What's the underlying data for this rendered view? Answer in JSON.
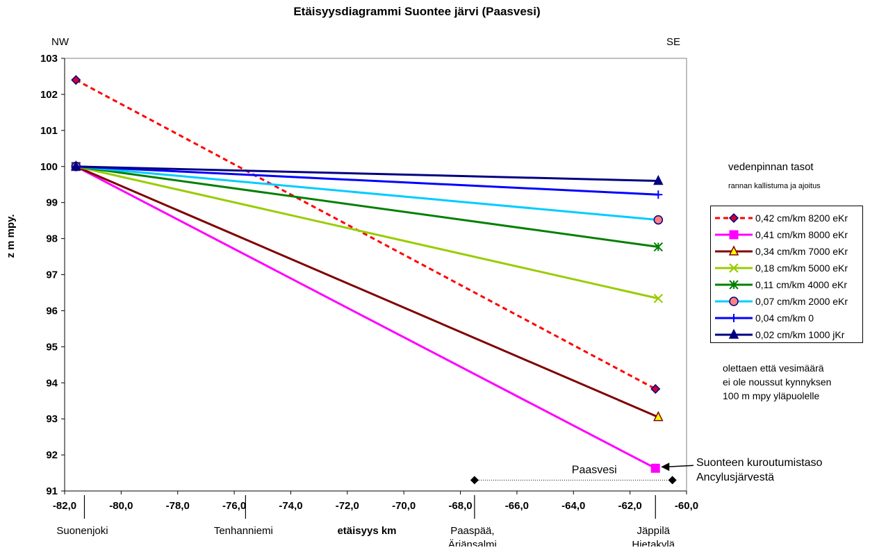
{
  "chart_data": {
    "type": "line",
    "title": "Etäisyysdiagrammi Suontee järvi (Paasvesi)",
    "xlabel": "etäisyys km",
    "ylabel": "z m mpy.",
    "xlim": [
      -82,
      -60
    ],
    "ylim": [
      91,
      103
    ],
    "x_ticks": [
      "-82,0",
      "-80,0",
      "-78,0",
      "-76,0",
      "-74,0",
      "-72,0",
      "-70,0",
      "-68,0",
      "-66,0",
      "-64,0",
      "-62,0",
      "-60,0"
    ],
    "y_ticks": [
      "91",
      "92",
      "93",
      "94",
      "95",
      "96",
      "97",
      "98",
      "99",
      "100",
      "101",
      "102",
      "103"
    ],
    "direction_left": "NW",
    "direction_right": "SE",
    "legend_title": "vedenpinnan tasot",
    "legend_subtitle": "rannan kallistuma ja ajoitus",
    "legend_position": "right",
    "series": [
      {
        "name": "0,42 cm/km 8200 eKr",
        "color": "#ff0000",
        "dash": true,
        "marker": "diamond",
        "marker_fill": "#cc0033",
        "marker_stroke": "#000080",
        "x": [
          -81.6,
          -61.1
        ],
        "y": [
          102.4,
          93.83
        ]
      },
      {
        "name": "0,41 cm/km 8000 eKr",
        "color": "#ff00ff",
        "dash": false,
        "marker": "square",
        "marker_fill": "#ff00ff",
        "marker_stroke": "#ff00ff",
        "x": [
          -81.6,
          -61.1
        ],
        "y": [
          100.0,
          91.63
        ]
      },
      {
        "name": "0,34 cm/km 7000 eKr",
        "color": "#800000",
        "dash": false,
        "marker": "triangle",
        "marker_fill": "#ffff00",
        "marker_stroke": "#800000",
        "x": [
          -81.6,
          -61.0
        ],
        "y": [
          100.0,
          93.05
        ]
      },
      {
        "name": "0,18 cm/km 5000 eKr",
        "color": "#99cc00",
        "dash": false,
        "marker": "x",
        "marker_fill": "none",
        "marker_stroke": "#99cc00",
        "x": [
          -81.6,
          -61.0
        ],
        "y": [
          100.0,
          96.34
        ]
      },
      {
        "name": "0,11 cm/km 4000 eKr",
        "color": "#008000",
        "dash": false,
        "marker": "star",
        "marker_fill": "none",
        "marker_stroke": "#008000",
        "x": [
          -81.6,
          -61.0
        ],
        "y": [
          100.0,
          97.77
        ]
      },
      {
        "name": "0,07 cm/km 2000 eKr",
        "color": "#00ccff",
        "dash": false,
        "marker": "circle",
        "marker_fill": "#ff8080",
        "marker_stroke": "#000080",
        "x": [
          -81.6,
          -61.0
        ],
        "y": [
          100.0,
          98.52
        ]
      },
      {
        "name": "0,04 cm/km 0",
        "color": "#0000ff",
        "dash": false,
        "marker": "plus",
        "marker_fill": "none",
        "marker_stroke": "#0000ff",
        "x": [
          -81.6,
          -61.0
        ],
        "y": [
          100.0,
          99.22
        ]
      },
      {
        "name": "0,02 cm/km 1000 jKr",
        "color": "#000080",
        "dash": false,
        "marker": "triangle",
        "marker_fill": "#000080",
        "marker_stroke": "#000080",
        "x": [
          -81.6,
          -61.0
        ],
        "y": [
          100.0,
          99.6
        ]
      }
    ],
    "locations": [
      {
        "label": "Suonenjoki",
        "x": -81.3
      },
      {
        "label": "Tenhanniemi",
        "x": -75.6
      },
      {
        "label": "Paaspää,",
        "label2": "Äriänsalmi",
        "x": -67.5
      },
      {
        "label": "Jäppilä",
        "label2": "Hietakylä",
        "x": -61.1
      }
    ],
    "paasvesi": {
      "label": "Paasvesi",
      "x_start": -67.5,
      "x_end": -60.5,
      "y": 91.3
    },
    "annotation_note": "olettaen että vesimäärä ei ole noussut kynnyksen 100 m mpy yläpuolelle",
    "note_lines": [
      "olettaen että vesimäärä",
      "ei ole noussut kynnyksen",
      "100 m mpy yläpuolelle"
    ],
    "arrow_annotation": {
      "lines": [
        "Suonteen kuroutumistaso",
        "Ancylusjärvestä"
      ],
      "x": -61.1,
      "y": 91.63
    }
  }
}
